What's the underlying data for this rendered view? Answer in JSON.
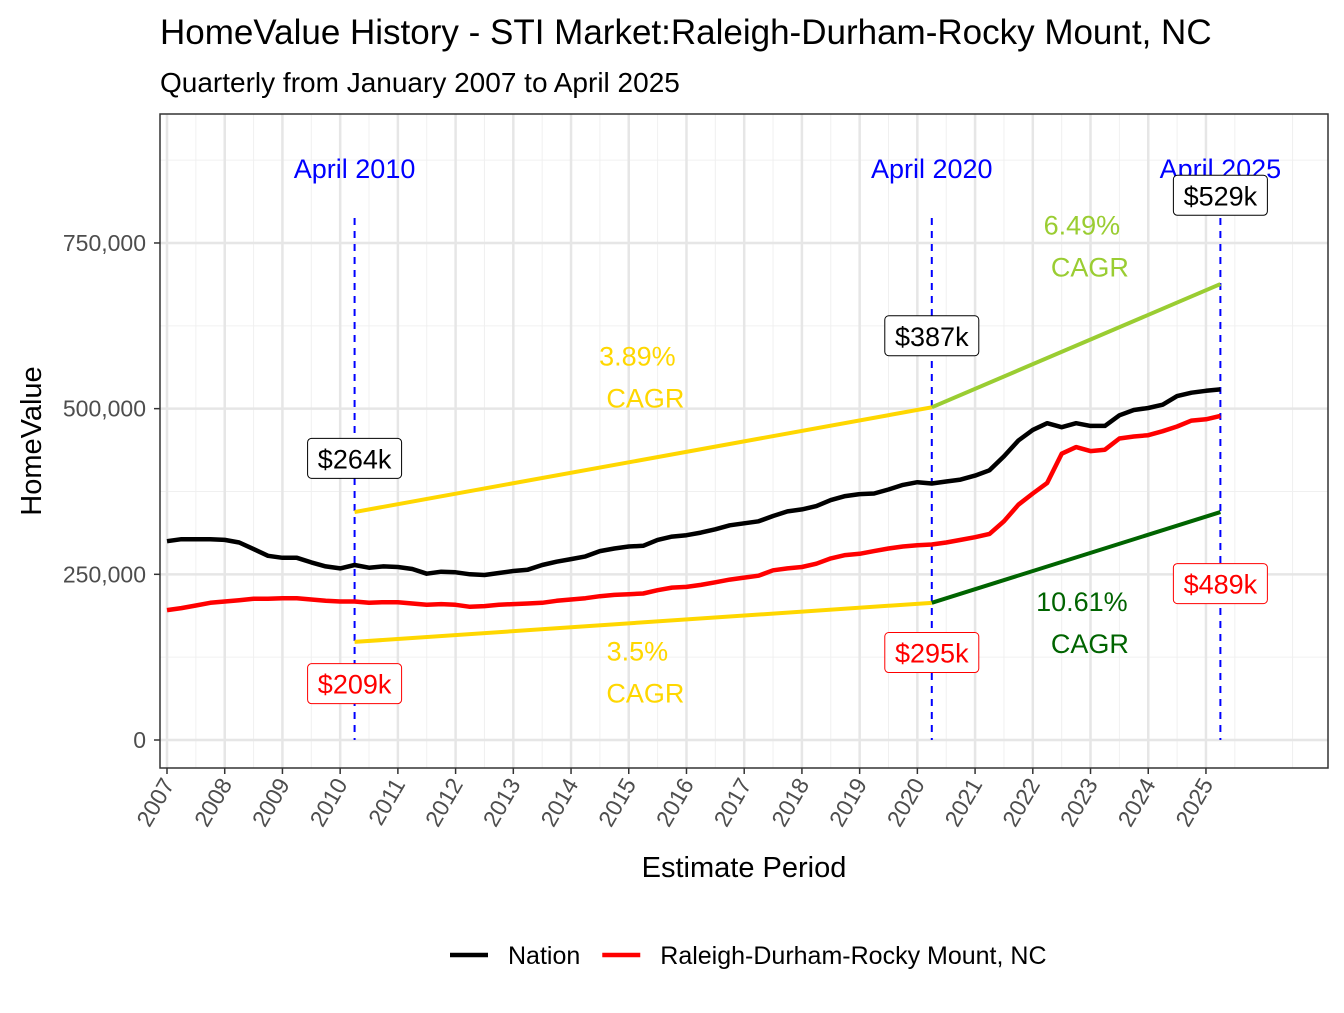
{
  "chart_data": {
    "type": "line",
    "title": "HomeValue History - STI Market:Raleigh-Durham-Rocky Mount, NC",
    "subtitle": "Quarterly from January 2007 to April 2025",
    "xlabel": "Estimate Period",
    "ylabel": "HomeValue",
    "xlim": [
      2006.9,
      2027.4
    ],
    "ylim": [
      -85000,
      940000
    ],
    "x_ticks": [
      "2007",
      "2008",
      "2009",
      "2010",
      "2011",
      "2012",
      "2013",
      "2014",
      "2015",
      "2016",
      "2017",
      "2018",
      "2019",
      "2020",
      "2021",
      "2022",
      "2023",
      "2024",
      "2025"
    ],
    "y_ticks": [
      0,
      250000,
      500000,
      750000
    ],
    "y_tick_labels": [
      "0",
      "250,000",
      "500,000",
      "750,000"
    ],
    "grid": true,
    "legend_position": "bottom",
    "x_start": "2007 Q1",
    "x_step": "quarter",
    "series": [
      {
        "name": "Nation",
        "color": "#000000",
        "values_k": [
          300,
          303,
          303,
          303,
          302,
          298,
          288,
          278,
          275,
          275,
          268,
          262,
          259,
          264,
          260,
          262,
          261,
          258,
          251,
          254,
          253,
          250,
          249,
          252,
          255,
          257,
          264,
          269,
          273,
          277,
          285,
          289,
          292,
          293,
          302,
          307,
          309,
          313,
          318,
          324,
          327,
          330,
          338,
          345,
          348,
          353,
          362,
          368,
          371,
          372,
          378,
          385,
          389,
          387,
          390,
          393,
          399,
          407,
          428,
          452,
          468,
          478,
          472,
          478,
          474,
          474,
          490,
          498,
          501,
          506,
          519,
          524,
          527,
          529
        ]
      },
      {
        "name": "Raleigh-Durham-Rocky Mount, NC",
        "color": "#ff0000",
        "values_k": [
          196,
          199,
          203,
          207,
          209,
          211,
          213,
          213,
          214,
          214,
          212,
          210,
          209,
          209,
          207,
          208,
          208,
          206,
          204,
          205,
          204,
          201,
          202,
          204,
          205,
          206,
          207,
          210,
          212,
          214,
          217,
          219,
          220,
          221,
          226,
          230,
          231,
          234,
          238,
          242,
          245,
          248,
          256,
          259,
          261,
          266,
          274,
          279,
          281,
          285,
          289,
          292,
          294,
          295,
          298,
          302,
          306,
          311,
          330,
          355,
          372,
          388,
          432,
          442,
          436,
          438,
          455,
          458,
          460,
          466,
          473,
          482,
          484,
          489
        ]
      }
    ],
    "vlines": [
      {
        "x": 2010.25,
        "label": "April 2010"
      },
      {
        "x": 2020.25,
        "label": "April 2020"
      },
      {
        "x": 2025.25,
        "label": "April 2025"
      }
    ],
    "vline_color": "#0000ff",
    "value_labels": [
      {
        "x": 2010.25,
        "y": 425000,
        "text": "$264k",
        "color": "#000000"
      },
      {
        "x": 2020.25,
        "y": 610000,
        "text": "$387k",
        "color": "#000000"
      },
      {
        "x": 2025.25,
        "y": 822000,
        "text": "$529k",
        "color": "#000000"
      },
      {
        "x": 2010.25,
        "y": 85000,
        "text": "$209k",
        "color": "#ff0000"
      },
      {
        "x": 2020.25,
        "y": 132000,
        "text": "$295k",
        "color": "#ff0000"
      },
      {
        "x": 2025.25,
        "y": 236000,
        "text": "$489k",
        "color": "#ff0000"
      }
    ],
    "cagr_lines": [
      {
        "x0": 2010.25,
        "y0": 344000,
        "x1": 2020.25,
        "y1": 502000,
        "color": "#ffd700",
        "rate": "3.89%",
        "label": "CAGR",
        "tx": 2015.15,
        "ty": 565000
      },
      {
        "x0": 2020.25,
        "y0": 502000,
        "x1": 2025.25,
        "y1": 688000,
        "color": "#9acd32",
        "rate": "6.49%",
        "label": "CAGR",
        "tx": 2022.85,
        "ty": 763000
      },
      {
        "x0": 2010.25,
        "y0": 148000,
        "x1": 2020.25,
        "y1": 207000,
        "color": "#ffd700",
        "rate": "3.5%",
        "label": "CAGR",
        "tx": 2015.15,
        "ty": 120000
      },
      {
        "x0": 2020.25,
        "y0": 207000,
        "x1": 2025.25,
        "y1": 344000,
        "color": "#006400",
        "rate": "10.61%",
        "label": "CAGR",
        "tx": 2022.85,
        "ty": 195000
      }
    ]
  }
}
